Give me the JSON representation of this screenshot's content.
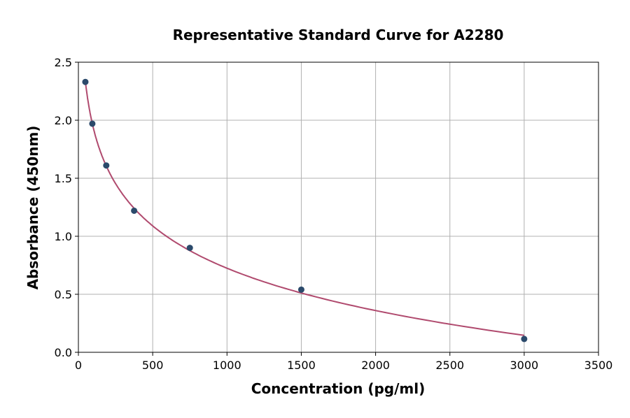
{
  "chart_data": {
    "type": "scatter",
    "title": "Representative Standard Curve for A2280",
    "xlabel": "Concentration (pg/ml)",
    "ylabel": "Absorbance (450nm)",
    "xlim": [
      0,
      3500
    ],
    "ylim": [
      0,
      2.5
    ],
    "xticks": [
      0,
      500,
      1000,
      1500,
      2000,
      2500,
      3000,
      3500
    ],
    "yticks": [
      "0.0",
      "0.5",
      "1.0",
      "1.5",
      "2.0",
      "2.5"
    ],
    "grid": true,
    "fit_curve": "log",
    "points": [
      {
        "x": 46.875,
        "y": 2.33
      },
      {
        "x": 93.75,
        "y": 1.97
      },
      {
        "x": 187.5,
        "y": 1.61
      },
      {
        "x": 375,
        "y": 1.22
      },
      {
        "x": 750,
        "y": 0.9
      },
      {
        "x": 1500,
        "y": 0.54
      },
      {
        "x": 3000,
        "y": 0.115
      }
    ],
    "colors": {
      "points": "#2b4a6b",
      "curve": "#b04a6e",
      "grid": "#b0b0b0"
    }
  }
}
